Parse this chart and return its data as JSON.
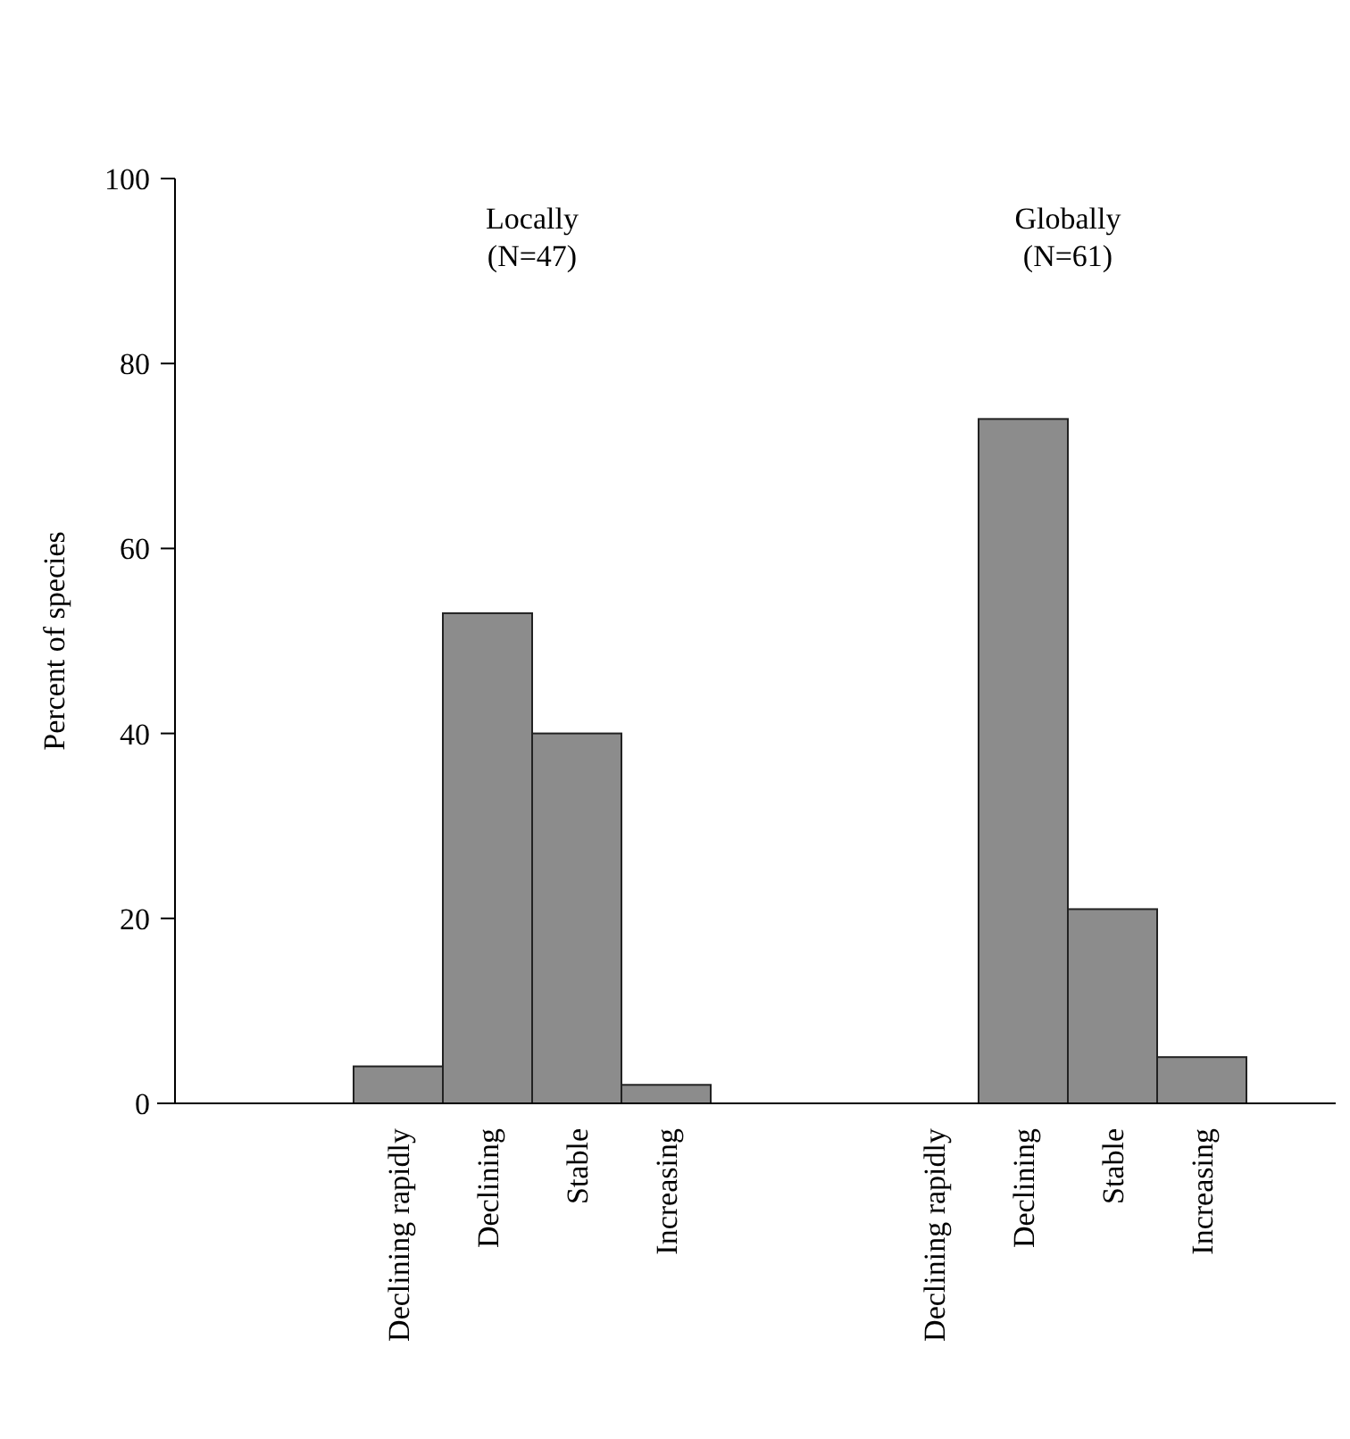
{
  "chart_data": {
    "type": "bar",
    "ylabel": "Percent of species",
    "categories": [
      null,
      null,
      "Declining rapidly",
      "Declining",
      "Stable",
      "Increasing",
      null,
      null,
      "Declining rapidly",
      "Declining",
      "Stable",
      "Increasing",
      null
    ],
    "values": [
      null,
      null,
      4,
      53,
      40,
      2,
      null,
      null,
      0,
      74,
      21,
      5,
      null
    ],
    "color": "#8c8c8c",
    "ylim": [
      0,
      100
    ],
    "yticks": [
      0,
      20,
      40,
      60,
      80,
      100
    ],
    "grid": false,
    "annotations": [
      "Locally\n(N=47)",
      "Globally\n(N=61)"
    ]
  }
}
